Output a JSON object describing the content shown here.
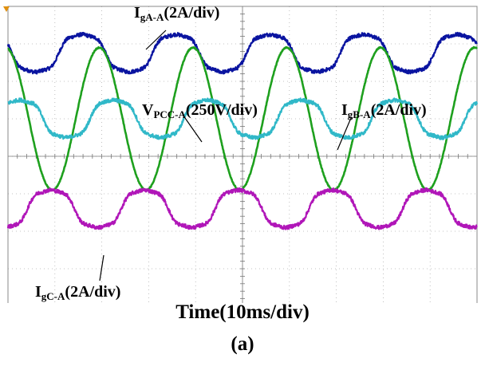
{
  "chart_data": {
    "type": "line",
    "xlabel": "Time(10ms/div)",
    "caption": "(a)",
    "x_per_division": "10ms",
    "grid": true,
    "divisions": {
      "x": 10,
      "y": 8
    },
    "x_range_ms": [
      0,
      100
    ],
    "series": [
      {
        "label_main": "I",
        "label_sub": "gA-A",
        "label_scale": "(2A/div)",
        "color": "#0a14a0",
        "scale_per_div": 2,
        "unit": "A",
        "waveform": "distorted-sine",
        "period_ms": 20,
        "center_div": 1.25,
        "amplitude_div": 0.55,
        "phase_deg": 165,
        "harmonics": [
          [
            3,
            0.14,
            0
          ],
          [
            5,
            0.05,
            0
          ]
        ],
        "noise_div": 0.05
      },
      {
        "label_main": "V",
        "label_sub": "PCC-A",
        "label_scale": "(250V/div)",
        "color": "#1ea01e",
        "scale_per_div": 250,
        "unit": "V",
        "waveform": "sine",
        "period_ms": 20,
        "center_div": 3.0,
        "amplitude_div": 1.9,
        "phase_deg": 100,
        "harmonics": [],
        "noise_div": 0.015
      },
      {
        "label_main": "I",
        "label_sub": "gB-A",
        "label_scale": "(2A/div)",
        "color": "#30b8c8",
        "scale_per_div": 2,
        "unit": "A",
        "waveform": "distorted-sine",
        "period_ms": 20,
        "center_div": 3.0,
        "amplitude_div": 0.55,
        "phase_deg": 45,
        "harmonics": [
          [
            3,
            0.14,
            0
          ],
          [
            5,
            0.05,
            0
          ]
        ],
        "noise_div": 0.05
      },
      {
        "label_main": "I",
        "label_sub": "gC-A",
        "label_scale": "(2A/div)",
        "color": "#b016b8",
        "scale_per_div": 2,
        "unit": "A",
        "waveform": "distorted-sine",
        "period_ms": 20,
        "center_div": 5.4,
        "amplitude_div": 0.55,
        "phase_deg": -75,
        "harmonics": [
          [
            3,
            0.14,
            0
          ],
          [
            5,
            0.05,
            0
          ]
        ],
        "noise_div": 0.05
      }
    ]
  }
}
